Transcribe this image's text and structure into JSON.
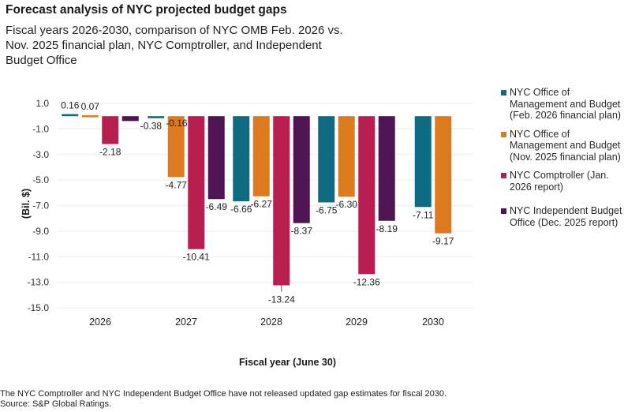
{
  "header": {
    "title": "Forecast analysis of NYC projected budget gaps",
    "subtitle": "Fiscal years 2026-2030, comparison of NYC OMB Feb. 2026 vs. Nov. 2025 financial plan, NYC Comptroller, and Independent Budget Office"
  },
  "chart_data": {
    "type": "bar",
    "title": "Forecast analysis of NYC projected budget gaps",
    "subtitle": "Fiscal years 2026-2030, comparison of NYC OMB Feb. 2026 vs. Nov. 2025 financial plan, NYC Comptroller, and Independent Budget Office",
    "xlabel": "Fiscal year (June 30)",
    "ylabel": "(Bil. $)",
    "ylim": [
      -15.0,
      1.0
    ],
    "yticks": [
      1.0,
      -1.0,
      -3.0,
      -5.0,
      -7.0,
      -9.0,
      -11.0,
      -13.0,
      -15.0
    ],
    "ytick_labels": [
      "1.0",
      "-1.0",
      "-3.0",
      "-5.0",
      "-7.0",
      "-9.0",
      "-11.0",
      "-13.0",
      "-15.0"
    ],
    "grid": true,
    "legend_position": "right",
    "categories": [
      "2026",
      "2027",
      "2028",
      "2029",
      "2030"
    ],
    "series": [
      {
        "name": "NYC Office of Management and Budget (Feb. 2026 financial plan)",
        "color": "#0e6b82",
        "values": [
          0.16,
          -0.16,
          -6.66,
          -6.75,
          -7.11
        ],
        "labels": [
          "0.16",
          "-0.16",
          "-6.66",
          "-6.75",
          "-7.11"
        ]
      },
      {
        "name": "NYC Office of Management and Budget (Nov. 2025 financial plan)",
        "color": "#dd7a1e",
        "values": [
          0.07,
          -4.77,
          -6.27,
          -6.3,
          -9.17
        ],
        "labels": [
          "0.07",
          "-4.77",
          "-6.27",
          "-6.30",
          "-9.17"
        ]
      },
      {
        "name": "NYC Comptroller (Jan. 2026 report)",
        "color": "#b81e50",
        "values": [
          -2.18,
          -10.41,
          -13.24,
          -12.36,
          null
        ],
        "labels": [
          "-2.18",
          "-10.41",
          "-13.24",
          "-12.36",
          null
        ]
      },
      {
        "name": "NYC Independent Budget Office (Dec. 2025 report)",
        "color": "#4e1552",
        "values": [
          -0.38,
          -6.49,
          -8.37,
          -8.19,
          null
        ],
        "labels": [
          "-0.38",
          "-6.49",
          "-8.37",
          "-8.19",
          null
        ]
      }
    ]
  },
  "legend": {
    "items": [
      {
        "label": "NYC Office of Management and Budget (Feb. 2026 financial plan)",
        "color": "#0e6b82"
      },
      {
        "label": "NYC Office of Management and Budget (Nov. 2025 financial plan)",
        "color": "#dd7a1e"
      },
      {
        "label": "NYC Comptroller (Jan. 2026 report)",
        "color": "#b81e50"
      },
      {
        "label": "NYC Independent Budget Office (Dec. 2025 report)",
        "color": "#4e1552"
      }
    ]
  },
  "footer": {
    "note": "The NYC Comptroller and NYC Independent Budget Office have not released updated gap estimates for fiscal 2030.",
    "source": "Source: S&P Global Ratings."
  }
}
